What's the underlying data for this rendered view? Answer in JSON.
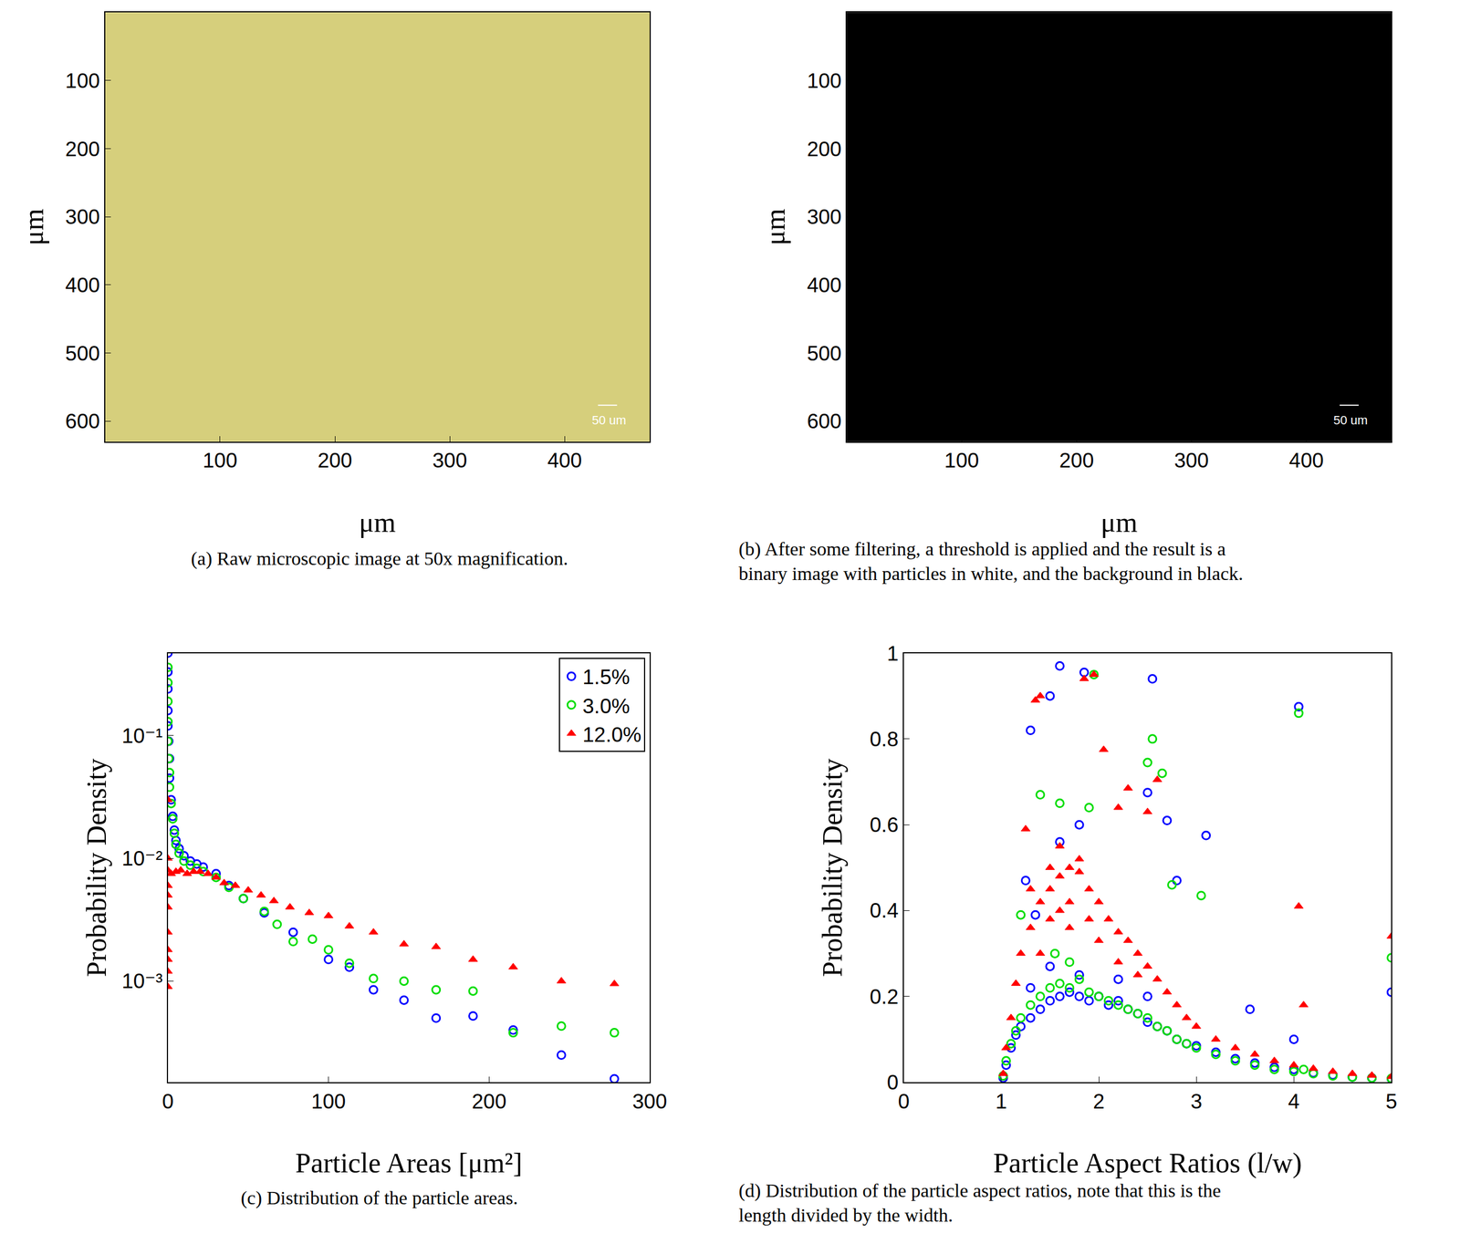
{
  "chart_data": [
    {
      "type": "image",
      "caption": "(a) Raw microscopic image at 50x magnification.",
      "color": "#d6cf7c",
      "x_label": "μm",
      "y_label": "μm",
      "xlim": [
        0,
        474
      ],
      "ylim": [
        630,
        0
      ],
      "xticks": [
        100,
        200,
        300,
        400
      ],
      "yticks": [
        100,
        200,
        300,
        400,
        500,
        600
      ],
      "annotations": [
        "50 um"
      ]
    },
    {
      "type": "image",
      "caption": "(b) After some filtering, a threshold is applied and the result is a binary image with particles in white, and the background in black.",
      "color": "#000000",
      "x_label": "μm",
      "y_label": "μm",
      "xlim": [
        0,
        474
      ],
      "ylim": [
        630,
        0
      ],
      "xticks": [
        100,
        200,
        300,
        400
      ],
      "yticks": [
        100,
        200,
        300,
        400,
        500,
        600
      ],
      "annotations": [
        "50 um"
      ]
    },
    {
      "type": "scatter",
      "caption": "(c) Distribution of the particle areas.",
      "x_label": "Particle Areas [μm²]",
      "y_label": "Probability Density",
      "log": "y",
      "legend": "top right",
      "xlim": [
        0,
        300
      ],
      "ylim": [
        0.00015,
        0.47
      ],
      "xticks": [
        0,
        100,
        200,
        300
      ],
      "yticks": [
        {
          "value": 0.001,
          "label": "10⁻³"
        },
        {
          "value": 0.01,
          "label": "10⁻²"
        },
        {
          "value": 0.1,
          "label": "10⁻¹"
        }
      ],
      "series": [
        {
          "name": "1.5%",
          "color": "#0000ff",
          "marker": "circle-open",
          "x": [
            0,
            0,
            0,
            0,
            0,
            0.5,
            1,
            1,
            2,
            3,
            4,
            5,
            7,
            10,
            14,
            18,
            22,
            30,
            38,
            47,
            60,
            78,
            100,
            113,
            128,
            147,
            167,
            190,
            215,
            245,
            278
          ],
          "values": [
            0.47,
            0.33,
            0.24,
            0.16,
            0.12,
            0.09,
            0.065,
            0.045,
            0.03,
            0.022,
            0.017,
            0.014,
            0.012,
            0.0105,
            0.0095,
            0.009,
            0.0085,
            0.0075,
            0.006,
            0.0047,
            0.0036,
            0.0025,
            0.0015,
            0.0013,
            0.00085,
            0.0007,
            0.0005,
            0.00052,
            0.0004,
            0.00025,
            0.00016
          ]
        },
        {
          "name": "3.0%",
          "color": "#00dd00",
          "marker": "circle-open",
          "x": [
            0,
            0,
            0,
            0,
            0,
            0.5,
            1,
            1,
            2,
            3,
            4,
            5,
            7,
            10,
            14,
            18,
            22,
            30,
            38,
            47,
            60,
            68,
            78,
            90,
            100,
            113,
            128,
            147,
            167,
            190,
            215,
            245,
            278
          ],
          "values": [
            0.36,
            0.27,
            0.19,
            0.13,
            0.09,
            0.065,
            0.05,
            0.038,
            0.028,
            0.021,
            0.016,
            0.013,
            0.011,
            0.0095,
            0.0088,
            0.0083,
            0.0078,
            0.007,
            0.0058,
            0.0047,
            0.0037,
            0.0029,
            0.0021,
            0.0022,
            0.0018,
            0.0014,
            0.00105,
            0.001,
            0.00085,
            0.00083,
            0.00038,
            0.00043,
            0.00038
          ]
        },
        {
          "name": "12.0%",
          "color": "#ff0000",
          "marker": "triangle-up",
          "x": [
            0,
            0,
            0,
            0,
            0,
            0,
            0,
            0,
            0,
            0,
            0,
            2,
            5,
            8,
            12,
            16,
            20,
            25,
            30,
            35,
            42,
            50,
            58,
            66,
            76,
            88,
            100,
            113,
            128,
            147,
            167,
            190,
            215,
            245,
            278
          ],
          "values": [
            0.03,
            0.01,
            0.008,
            0.006,
            0.005,
            0.004,
            0.0025,
            0.0018,
            0.0015,
            0.0012,
            0.0009,
            0.0075,
            0.0078,
            0.008,
            0.0075,
            0.0078,
            0.0078,
            0.0075,
            0.007,
            0.0063,
            0.006,
            0.0055,
            0.005,
            0.0045,
            0.004,
            0.0036,
            0.0034,
            0.0028,
            0.0025,
            0.002,
            0.0019,
            0.0015,
            0.0013,
            0.001,
            0.00095
          ]
        }
      ]
    },
    {
      "type": "scatter",
      "caption": "(d) Distribution of the particle aspect ratios, note that this is the length divided by the width.",
      "x_label": "Particle Aspect Ratios (l/w)",
      "y_label": "Probability Density",
      "xlim": [
        0,
        5
      ],
      "ylim": [
        0,
        1
      ],
      "xticks": [
        0,
        1,
        2,
        3,
        4,
        5
      ],
      "yticks": [
        0,
        0.2,
        0.4,
        0.6,
        0.8,
        1
      ],
      "series": [
        {
          "color": "#0000ff",
          "marker": "circle-open",
          "x": [
            1.02,
            1.05,
            1.1,
            1.15,
            1.2,
            1.3,
            1.4,
            1.5,
            1.6,
            1.7,
            1.8,
            1.9,
            2.0,
            2.1,
            2.2,
            2.3,
            2.4,
            2.5,
            2.6,
            2.7,
            2.8,
            2.9,
            3.0,
            3.2,
            3.4,
            3.6,
            3.8,
            4.0,
            4.2,
            4.4,
            4.6,
            4.8,
            5.0,
            1.5,
            1.8,
            2.2,
            2.5,
            1.3,
            1.25,
            1.35,
            1.6,
            1.85,
            2.55,
            4.05,
            1.3,
            1.5,
            2.7,
            2.5,
            3.1,
            2.8,
            5.0,
            1.8,
            1.6,
            4.0,
            3.55
          ],
          "values": [
            0.01,
            0.04,
            0.08,
            0.11,
            0.13,
            0.15,
            0.17,
            0.19,
            0.2,
            0.21,
            0.2,
            0.19,
            0.2,
            0.18,
            0.19,
            0.17,
            0.16,
            0.14,
            0.13,
            0.12,
            0.1,
            0.09,
            0.085,
            0.07,
            0.055,
            0.045,
            0.035,
            0.03,
            0.022,
            0.017,
            0.012,
            0.01,
            0.008,
            0.27,
            0.25,
            0.24,
            0.2,
            0.22,
            0.47,
            0.39,
            0.97,
            0.955,
            0.94,
            0.875,
            0.82,
            0.9,
            0.61,
            0.675,
            0.575,
            0.47,
            0.21,
            0.6,
            0.56,
            0.1,
            0.17
          ]
        },
        {
          "color": "#00dd00",
          "marker": "circle-open",
          "x": [
            1.02,
            1.05,
            1.1,
            1.15,
            1.2,
            1.3,
            1.4,
            1.5,
            1.6,
            1.7,
            1.8,
            1.9,
            2.0,
            2.1,
            2.2,
            2.3,
            2.4,
            2.5,
            2.6,
            2.7,
            2.8,
            2.9,
            3.0,
            3.2,
            3.4,
            3.6,
            3.8,
            4.0,
            4.2,
            4.4,
            4.6,
            4.8,
            5.0,
            1.95,
            4.05,
            2.55,
            2.65,
            2.5,
            3.05,
            1.4,
            1.6,
            5.0,
            4.1,
            2.75,
            1.9,
            1.2,
            1.55,
            1.7
          ],
          "values": [
            0.015,
            0.05,
            0.09,
            0.12,
            0.15,
            0.18,
            0.2,
            0.22,
            0.23,
            0.22,
            0.24,
            0.21,
            0.2,
            0.19,
            0.18,
            0.17,
            0.16,
            0.15,
            0.13,
            0.12,
            0.1,
            0.09,
            0.08,
            0.065,
            0.05,
            0.04,
            0.03,
            0.025,
            0.02,
            0.015,
            0.012,
            0.01,
            0.009,
            0.95,
            0.86,
            0.8,
            0.72,
            0.745,
            0.435,
            0.67,
            0.65,
            0.29,
            0.03,
            0.46,
            0.64,
            0.39,
            0.3,
            0.28
          ]
        },
        {
          "color": "#ff0000",
          "marker": "triangle-up",
          "x": [
            1.02,
            1.05,
            1.1,
            1.15,
            1.2,
            1.3,
            1.4,
            1.5,
            1.6,
            1.7,
            1.8,
            1.9,
            2.0,
            2.1,
            2.2,
            2.3,
            2.4,
            2.5,
            2.6,
            2.7,
            2.8,
            2.9,
            3.0,
            3.2,
            3.4,
            3.6,
            3.8,
            4.0,
            4.2,
            4.4,
            4.6,
            4.8,
            5.0,
            1.4,
            1.5,
            1.6,
            1.7,
            1.8,
            1.9,
            2.0,
            1.3,
            1.6,
            2.2,
            1.5,
            1.7,
            2.4,
            1.35,
            1.4,
            1.85,
            1.95,
            2.05,
            2.3,
            2.6,
            4.05,
            5.0,
            1.25,
            4.1,
            2.5,
            2.2
          ],
          "values": [
            0.02,
            0.08,
            0.15,
            0.23,
            0.3,
            0.36,
            0.42,
            0.45,
            0.48,
            0.5,
            0.49,
            0.45,
            0.42,
            0.38,
            0.35,
            0.33,
            0.3,
            0.27,
            0.24,
            0.21,
            0.18,
            0.15,
            0.13,
            0.1,
            0.08,
            0.065,
            0.05,
            0.04,
            0.032,
            0.025,
            0.02,
            0.016,
            0.013,
            0.3,
            0.38,
            0.4,
            0.42,
            0.52,
            0.38,
            0.33,
            0.45,
            0.55,
            0.28,
            0.5,
            0.36,
            0.25,
            0.89,
            0.9,
            0.94,
            0.95,
            0.775,
            0.685,
            0.705,
            0.41,
            0.34,
            0.59,
            0.18,
            0.63,
            0.64
          ]
        }
      ]
    }
  ]
}
